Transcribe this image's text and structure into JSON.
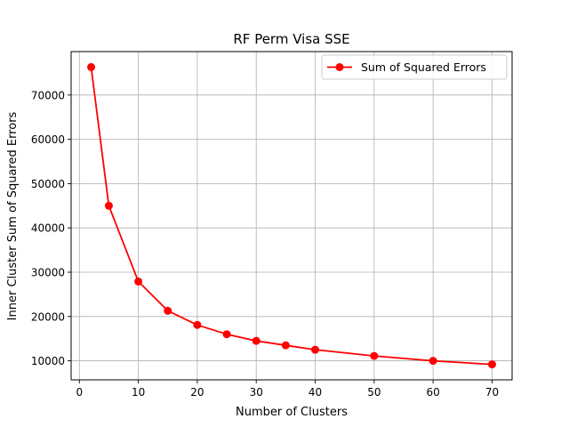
{
  "chart_data": {
    "type": "line",
    "title": "RF Perm Visa SSE",
    "xlabel": "Number of Clusters",
    "ylabel": "Inner Cluster Sum of Squared Errors",
    "xlim": [
      -1.4,
      73.4
    ],
    "ylim": [
      5700,
      79800
    ],
    "x_ticks": [
      0,
      10,
      20,
      30,
      40,
      50,
      60,
      70
    ],
    "y_ticks": [
      10000,
      20000,
      30000,
      40000,
      50000,
      60000,
      70000
    ],
    "grid": true,
    "legend_position": "top-right",
    "series": [
      {
        "name": "Sum of Squared Errors",
        "color": "#ff0000",
        "marker": "circle",
        "x": [
          2,
          5,
          10,
          15,
          20,
          25,
          30,
          35,
          40,
          50,
          60,
          70
        ],
        "y": [
          76300,
          45000,
          27900,
          21300,
          18100,
          16000,
          14500,
          13500,
          12500,
          11100,
          10000,
          9200
        ]
      }
    ]
  }
}
